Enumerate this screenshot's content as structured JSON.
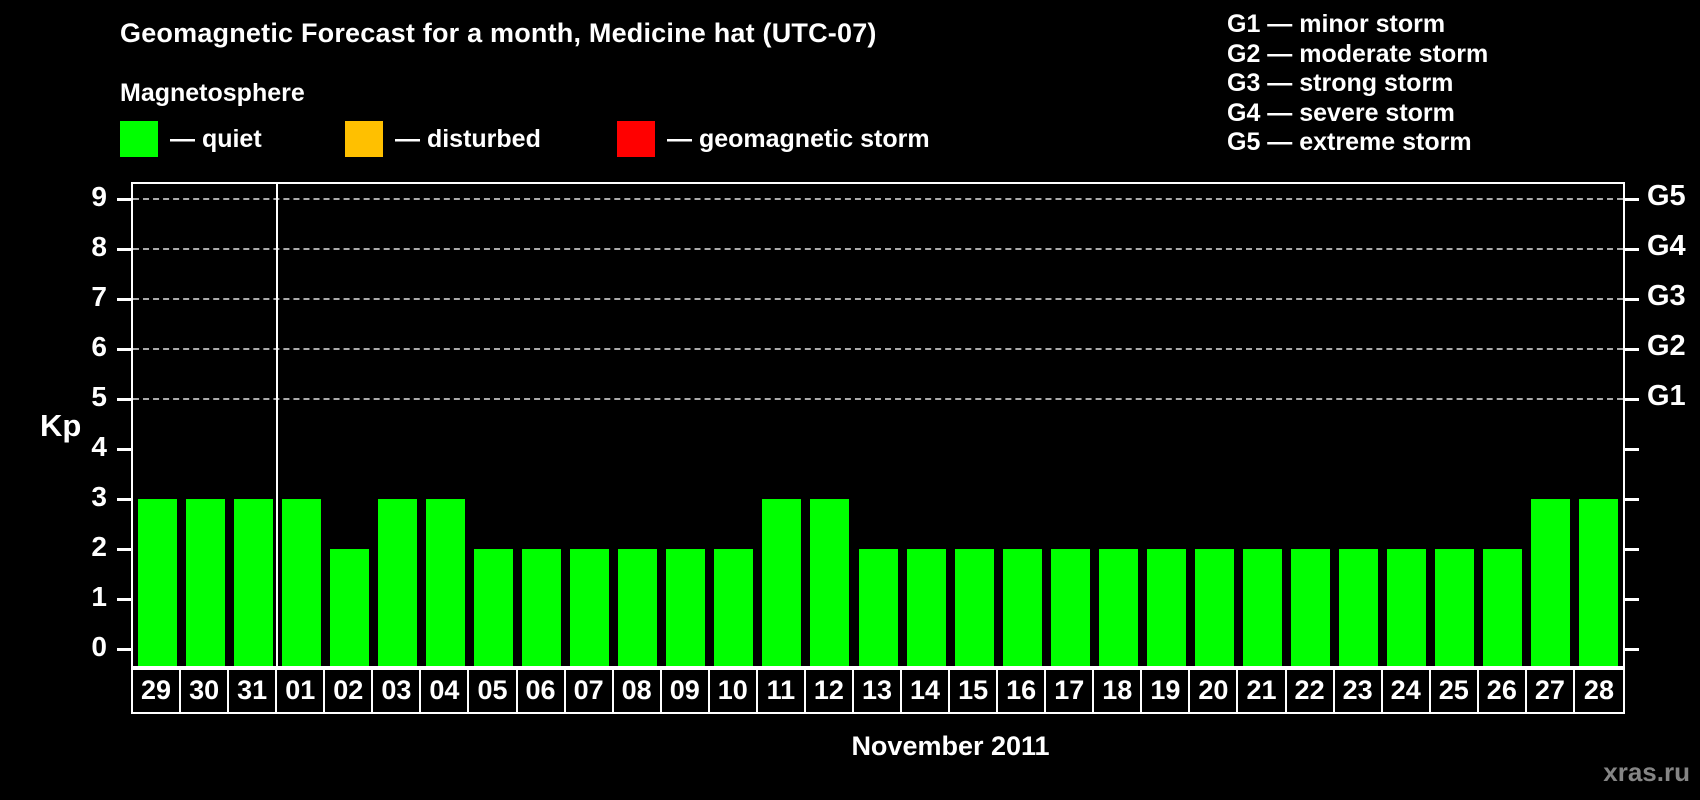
{
  "title": "Geomagnetic Forecast for a month, Medicine hat (UTC-07)",
  "subtitle": "Magnetosphere",
  "status_legend": [
    {
      "name": "quiet",
      "label": "— quiet",
      "color": "#00ff00"
    },
    {
      "name": "disturbed",
      "label": "— disturbed",
      "color": "#ffc000"
    },
    {
      "name": "storm",
      "label": "— geomagnetic storm",
      "color": "#ff0000"
    }
  ],
  "g_scale_legend": [
    "G1 — minor storm",
    "G2 — moderate storm",
    "G3 — strong storm",
    "G4 — severe storm",
    "G5 — extreme storm"
  ],
  "watermark": "xras.ru",
  "colors": {
    "background": "#000000",
    "axis": "#ffffff",
    "grid": "#aaaaaa",
    "bar": "#00ff00",
    "watermark": "#858585"
  },
  "chart_data": {
    "type": "bar",
    "title": "Geomagnetic Forecast for a month, Medicine hat (UTC-07)",
    "ylabel": "Kp",
    "xlabel": "November 2011",
    "ylim": [
      0,
      9.4
    ],
    "y_ticks": [
      0,
      1,
      2,
      3,
      4,
      5,
      6,
      7,
      8,
      9
    ],
    "gridlines_at": [
      5,
      6,
      7,
      8,
      9
    ],
    "grid_style": "dashed",
    "legend_position": "top",
    "right_axis_labels": [
      {
        "kp": 9,
        "label": "G5"
      },
      {
        "kp": 8,
        "label": "G4"
      },
      {
        "kp": 7,
        "label": "G3"
      },
      {
        "kp": 6,
        "label": "G2"
      },
      {
        "kp": 5,
        "label": "G1"
      }
    ],
    "categories": [
      "29",
      "30",
      "31",
      "01",
      "02",
      "03",
      "04",
      "05",
      "06",
      "07",
      "08",
      "09",
      "10",
      "11",
      "12",
      "13",
      "14",
      "15",
      "16",
      "17",
      "18",
      "19",
      "20",
      "21",
      "22",
      "23",
      "24",
      "25",
      "26",
      "27",
      "28"
    ],
    "values": [
      3,
      3,
      3,
      3,
      2,
      3,
      3,
      2,
      2,
      2,
      2,
      2,
      2,
      3,
      3,
      2,
      2,
      2,
      2,
      2,
      2,
      2,
      2,
      2,
      2,
      2,
      2,
      2,
      2,
      3,
      3
    ],
    "bar_color": "#00ff00",
    "month_boundary_after_index": 2
  }
}
